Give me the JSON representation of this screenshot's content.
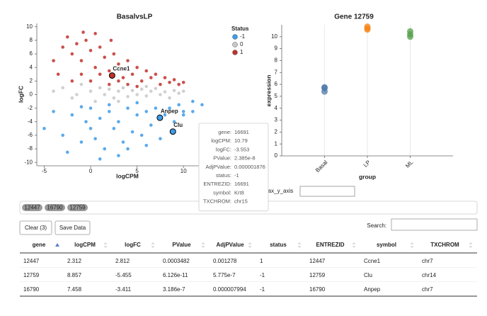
{
  "chart_data": [
    {
      "type": "scatter",
      "title": "BasalvsLP",
      "x_label": "logCPM",
      "y_label": "logFC",
      "xlim": [
        -5.8,
        12.5
      ],
      "ylim": [
        -10.5,
        10.5
      ],
      "xticks": [
        -5,
        0,
        5,
        10
      ],
      "yticks": [
        -10,
        -8,
        -6,
        -4,
        -2,
        0,
        2,
        4,
        6,
        8,
        10
      ],
      "legend_title": "Status",
      "legend_position": "right",
      "series": [
        {
          "name": "-1",
          "color": "#3d9be9",
          "x": [
            -5,
            -4,
            -3,
            -2,
            -1,
            -0.5,
            0,
            0.5,
            1,
            1.5,
            2,
            2.5,
            3,
            3.5,
            4,
            4.5,
            5,
            5.5,
            6,
            6.5,
            7,
            7.5,
            8,
            8.5,
            9,
            9.5,
            10,
            11,
            12,
            -2.5,
            1,
            4,
            6,
            2,
            5,
            -1,
            3,
            0,
            10,
            11
          ],
          "values": [
            -5,
            -2.5,
            -6,
            -3,
            -7,
            -4,
            -2,
            -6.5,
            -3.5,
            -8,
            -2.5,
            -5,
            -4,
            -7,
            -2,
            -5.5,
            -3,
            -6,
            -2.5,
            -4.5,
            -2,
            -6.5,
            -3,
            -2,
            -4,
            -1.5,
            -2.5,
            -1,
            -1.5,
            -8.5,
            -9.5,
            -8,
            -7.5,
            -1.5,
            -1.2,
            -1.8,
            -9,
            -5,
            -3,
            -2.5
          ]
        },
        {
          "name": "0",
          "color": "#c8c8c8",
          "x": [
            -4,
            -3,
            -2,
            -1,
            0,
            0.5,
            1,
            1.5,
            2,
            2.5,
            3,
            3.5,
            4,
            4.5,
            5,
            5.5,
            6,
            6.5,
            7,
            7.5,
            8,
            8.5,
            9,
            9.5,
            10,
            -1.5,
            3,
            6
          ],
          "values": [
            0.5,
            1,
            -0.5,
            1.5,
            0.5,
            -1,
            1,
            0,
            0.8,
            -0.5,
            0.5,
            1,
            -0.3,
            0.6,
            0,
            0.8,
            -0.2,
            0.5,
            0.9,
            0,
            0.4,
            -0.5,
            0.6,
            0.2,
            0.5,
            0,
            -1,
            1.2
          ]
        },
        {
          "name": "1",
          "color": "#c1312c",
          "x": [
            -3,
            -2.5,
            -2,
            -1.5,
            -1,
            -0.5,
            0,
            0.5,
            1,
            1.5,
            2,
            2.5,
            3,
            3.5,
            4,
            4.5,
            5,
            5.5,
            6,
            6.5,
            7,
            7.5,
            8,
            8.5,
            9,
            9.5,
            10,
            -3.5,
            -2,
            -1,
            0,
            1,
            2,
            3,
            4,
            5,
            -4,
            0.5,
            -0.8,
            2.2
          ],
          "values": [
            7,
            8.5,
            6,
            7.5,
            5,
            8,
            6.5,
            4,
            7,
            5.5,
            3.5,
            6,
            4.5,
            2.5,
            5,
            3,
            4,
            2,
            3.5,
            2.5,
            3,
            1.5,
            2.5,
            1.8,
            2.2,
            1.5,
            1.8,
            3,
            2,
            3,
            2,
            3,
            1.5,
            2,
            1.5,
            1.2,
            5,
            9,
            9.2,
            8
          ]
        }
      ],
      "highlights": [
        {
          "label": "Ccne1",
          "x": 2.312,
          "y": 2.812,
          "color": "#c1312c"
        },
        {
          "label": "Anpep",
          "x": 7.458,
          "y": -3.411,
          "color": "#3d9be9"
        },
        {
          "label": "Clu",
          "x": 8.857,
          "y": -5.455,
          "color": "#3d9be9"
        }
      ]
    },
    {
      "type": "strip",
      "title": "Gene 12759",
      "x_label": "group",
      "y_label": "expression",
      "categories": [
        "Basal",
        "LP",
        "ML"
      ],
      "colors": [
        "#4c78a8",
        "#f58518",
        "#54a24b"
      ],
      "points": [
        [
          5.75,
          5.4,
          5.7
        ],
        [
          10.85,
          10.6,
          10.7
        ],
        [
          10.45,
          10.0,
          10.2
        ]
      ],
      "ylim": [
        0,
        11
      ],
      "yticks": [
        0,
        1,
        2,
        3,
        4,
        5,
        6,
        7,
        8,
        9,
        10
      ],
      "grid": true
    }
  ],
  "max_y_axis_label": "max_y_axis",
  "tags": [
    "12447",
    "16790",
    "12759"
  ],
  "buttons": [
    "Clear (3)",
    "Save Data"
  ],
  "search_label": "Search:",
  "table": {
    "columns": [
      "gene",
      "logCPM",
      "logFC",
      "PValue",
      "AdjPValue",
      "status",
      "ENTREZID",
      "symbol",
      "TXCHROM"
    ],
    "rows": [
      [
        "12447",
        "2.312",
        "2.812",
        "0.0003482",
        "0.001278",
        "1",
        "12447",
        "Ccne1",
        "chr7"
      ],
      [
        "12759",
        "8.857",
        "-5.455",
        "6.126e-11",
        "5.775e-7",
        "-1",
        "12759",
        "Clu",
        "chr14"
      ],
      [
        "16790",
        "7.458",
        "-3.411",
        "3.186e-7",
        "0.000007994",
        "-1",
        "16790",
        "Anpep",
        "chr7"
      ]
    ]
  },
  "tooltip": [
    [
      "gene:",
      "16691"
    ],
    [
      "logCPM:",
      "10.79"
    ],
    [
      "logFC:",
      "-3.553"
    ],
    [
      "PValue:",
      "2.385e-8"
    ],
    [
      "AdjPValue:",
      "0.000001876"
    ],
    [
      "status:",
      "-1"
    ],
    [
      "ENTREZID:",
      "16691"
    ],
    [
      "symbol:",
      "Krt8"
    ],
    [
      "TXCHROM:",
      "chr15"
    ]
  ]
}
